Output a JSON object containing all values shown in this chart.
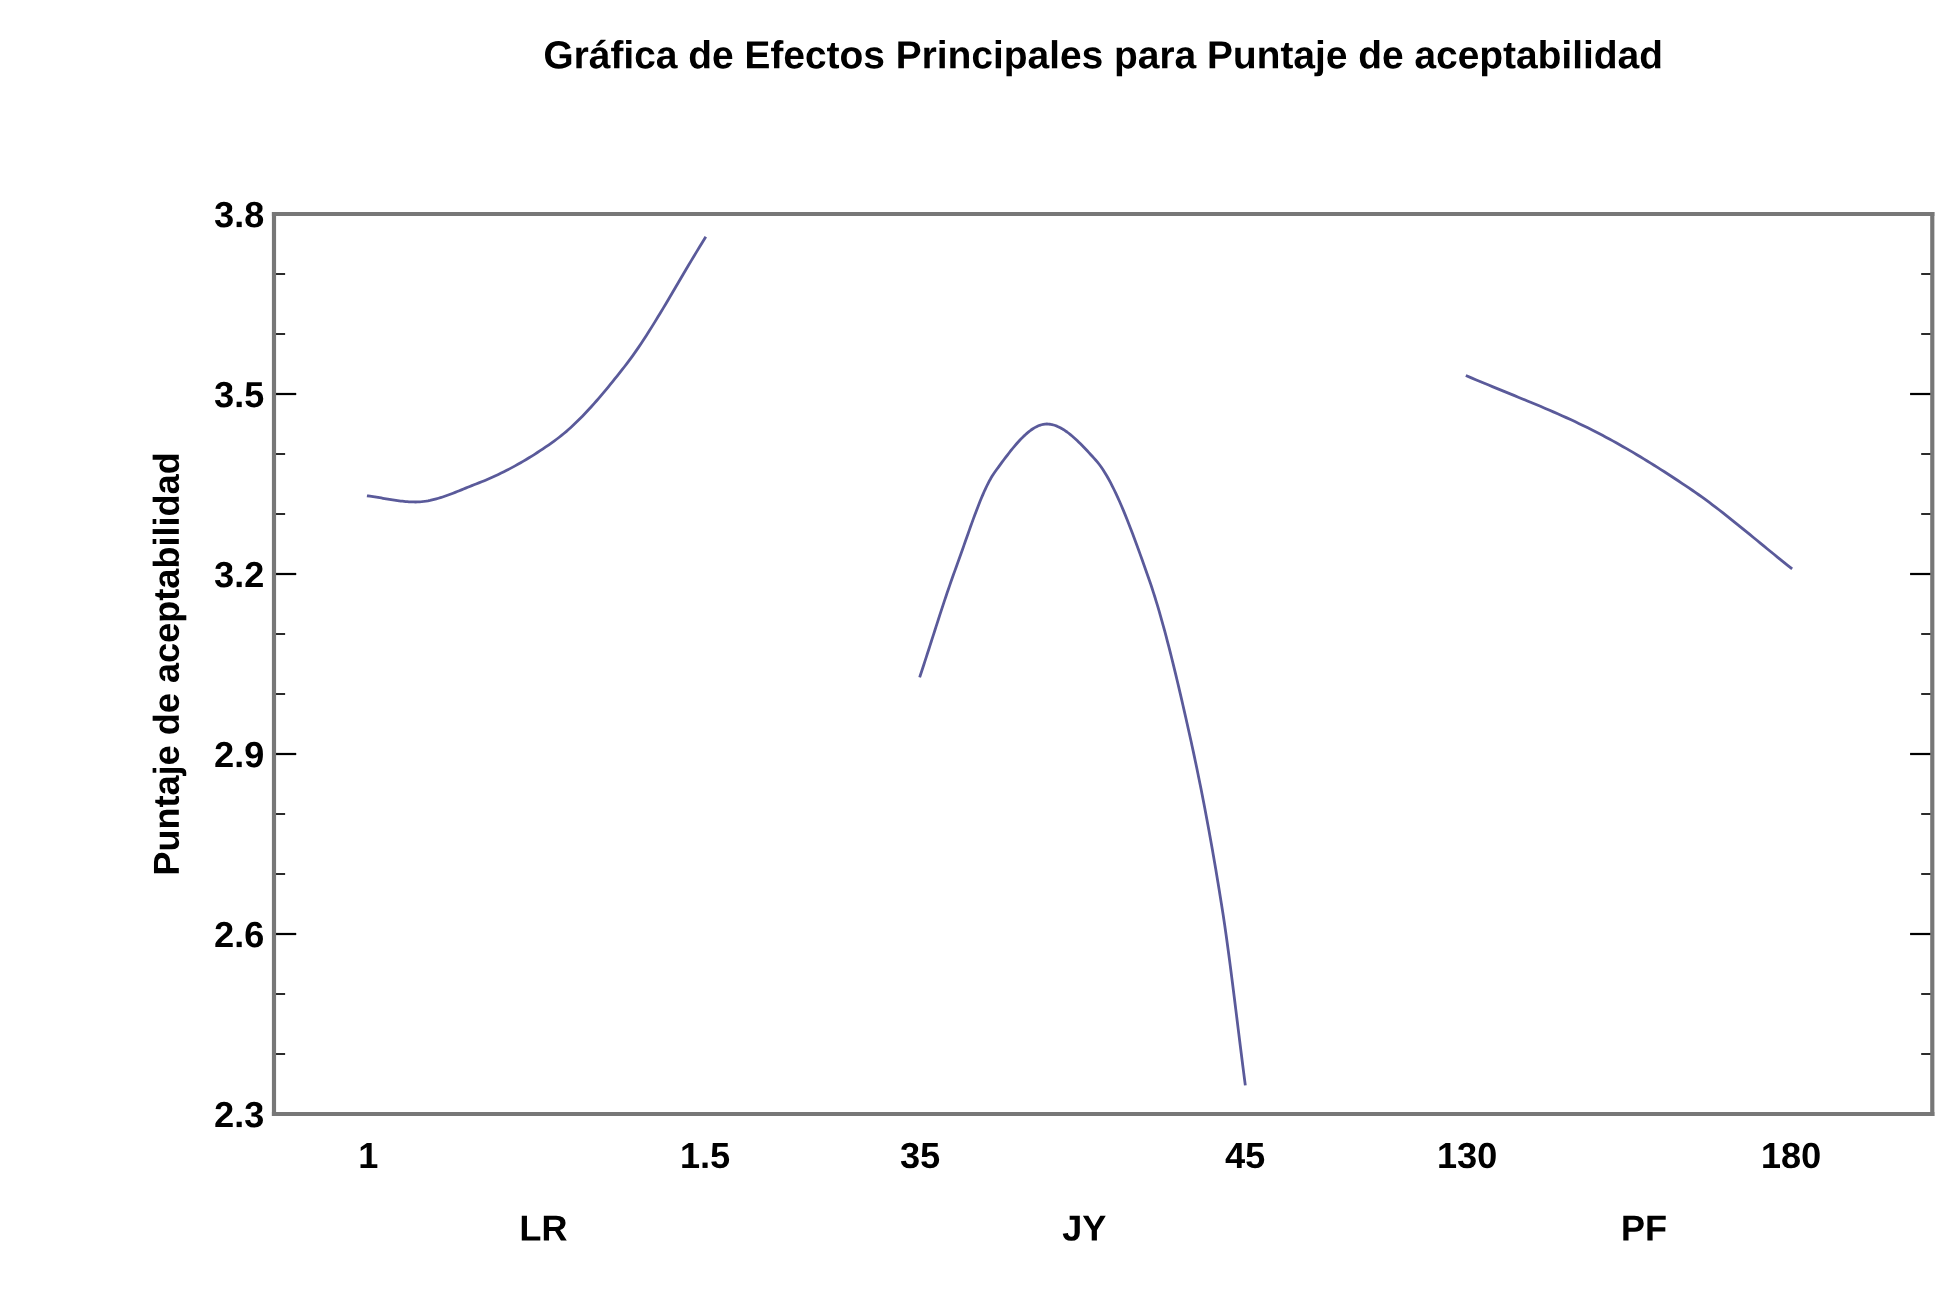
{
  "chart_data": [
    {
      "type": "line",
      "title": "Gráfica de Efectos Principales para Puntaje de aceptabilidad",
      "ylabel": "Puntaje de aceptabilidad",
      "xlabel": "LR",
      "color": "#5a5a9a",
      "x": [
        1.0,
        1.07,
        1.16,
        1.28,
        1.38,
        1.5
      ],
      "values": [
        3.33,
        3.32,
        3.35,
        3.425,
        3.545,
        3.76
      ],
      "xlim": [
        0.86,
        1.66
      ],
      "xticks": [
        1,
        1.5
      ],
      "ylim": [
        2.3,
        3.8
      ],
      "yticks": [
        2.3,
        2.6,
        2.9,
        3.2,
        3.5,
        3.8
      ],
      "grid": false,
      "marker": "none",
      "line_style": "solid"
    },
    {
      "type": "line",
      "xlabel": "JY",
      "color": "#5a5a9a",
      "x": [
        35,
        36.1,
        37.3,
        38.9,
        40.4,
        42.05,
        43.3,
        44.3,
        45
      ],
      "values": [
        3.03,
        3.21,
        3.37,
        3.45,
        3.39,
        3.19,
        2.93,
        2.64,
        2.35
      ],
      "xlim": [
        31.7,
        48.4
      ],
      "xticks": [
        35,
        45
      ],
      "ylim": [
        2.3,
        3.8
      ],
      "tick_labels": "x",
      "grid": false,
      "marker": "none",
      "line_style": "solid"
    },
    {
      "type": "line",
      "xlabel": "PF",
      "color": "#5a5a9a",
      "x": [
        130,
        149.3,
        164.7,
        180
      ],
      "values": [
        3.53,
        3.44,
        3.34,
        3.21
      ],
      "xlim": [
        112.8,
        201.8
      ],
      "xticks": [
        130,
        180
      ],
      "ylim": [
        2.3,
        3.8
      ],
      "tick_labels": "x",
      "grid": false,
      "marker": "none",
      "line_style": "solid"
    }
  ]
}
